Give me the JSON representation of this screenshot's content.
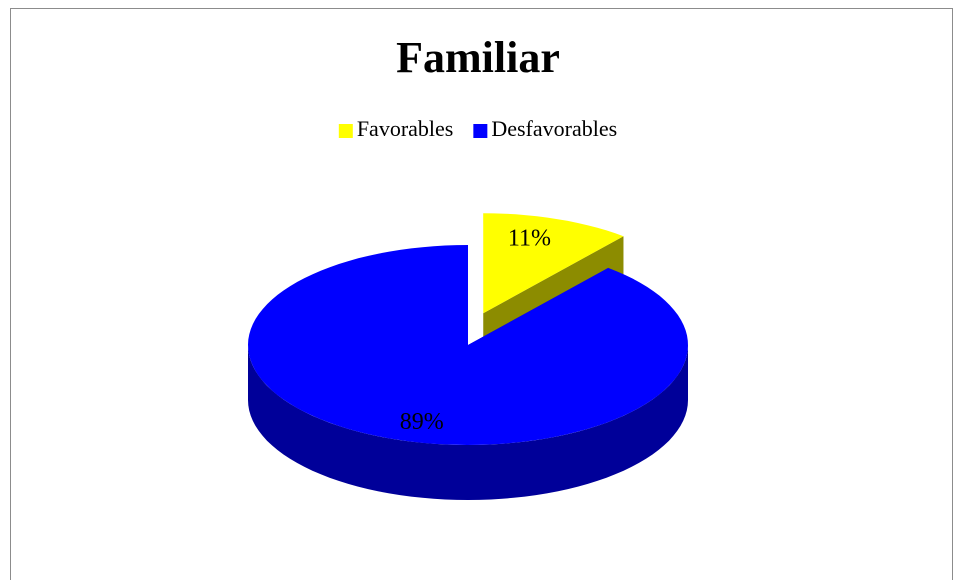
{
  "chart_data": {
    "type": "pie",
    "title": "Familiar",
    "categories": [
      "Favorables",
      "Desfavorables"
    ],
    "values": [
      11,
      89
    ],
    "value_labels": [
      "11%",
      "89%"
    ],
    "colors": [
      "#ffff00",
      "#0000ff"
    ],
    "legend": "top",
    "explode": [
      true,
      false
    ]
  }
}
